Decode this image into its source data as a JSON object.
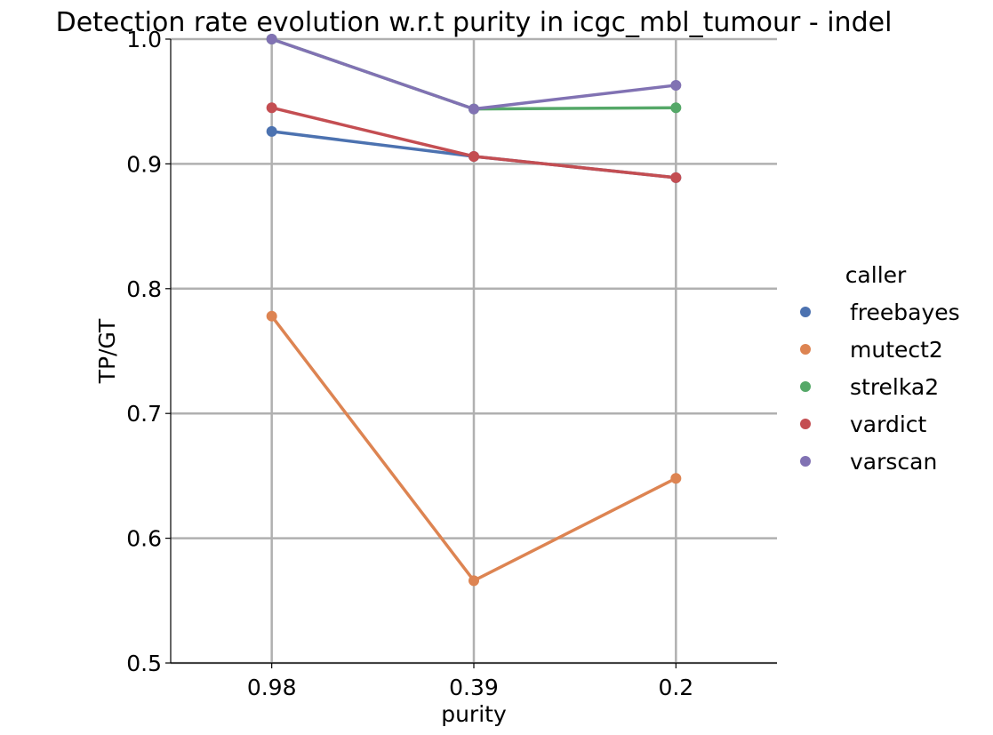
{
  "chart_data": {
    "type": "line",
    "title": "Detection rate evolution w.r.t purity in icgc_mbl_tumour - indel",
    "xlabel": "purity",
    "ylabel": "TP/GT",
    "categories": [
      "0.98",
      "0.39",
      "0.2"
    ],
    "ylim": [
      0.5,
      1.0
    ],
    "yticks": [
      "0.5",
      "0.6",
      "0.7",
      "0.8",
      "0.9",
      "1.0"
    ],
    "grid": true,
    "legend_title": "caller",
    "legend_position": "right",
    "series": [
      {
        "name": "freebayes",
        "color": "#4c72b0",
        "values": [
          0.926,
          0.906,
          0.889
        ]
      },
      {
        "name": "mutect2",
        "color": "#dd8452",
        "values": [
          0.778,
          0.566,
          0.648
        ]
      },
      {
        "name": "strelka2",
        "color": "#55a868",
        "values": [
          1.0,
          0.944,
          0.945
        ]
      },
      {
        "name": "vardict",
        "color": "#c44e52",
        "values": [
          0.945,
          0.906,
          0.889
        ]
      },
      {
        "name": "varscan",
        "color": "#8172b3",
        "values": [
          1.0,
          0.944,
          0.963
        ]
      }
    ]
  }
}
